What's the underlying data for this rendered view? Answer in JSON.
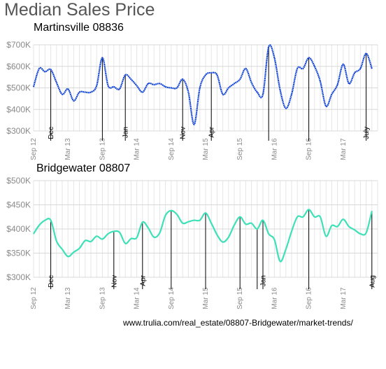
{
  "title": "Median Sales Price",
  "source": "www.trulia.com/real_estate/08807-Bridgewater/market-trends/",
  "chart_data": [
    {
      "type": "line",
      "title": "Martinsville  08836",
      "color": "#1446d6",
      "ylim": [
        300000,
        700000
      ],
      "yticks": [
        {
          "value": 300000,
          "label": "$300K"
        },
        {
          "value": 400000,
          "label": "$400K"
        },
        {
          "value": 500000,
          "label": "$500K"
        },
        {
          "value": 600000,
          "label": "$600K"
        },
        {
          "value": 700000,
          "label": "$700K"
        }
      ],
      "xticks": [
        {
          "value": "2012-09",
          "label": "Sep 12"
        },
        {
          "value": "2013-03",
          "label": "Mar 13"
        },
        {
          "value": "2013-09",
          "label": "Sep 13"
        },
        {
          "value": "2014-03",
          "label": "Mar 14"
        },
        {
          "value": "2014-09",
          "label": "Sep 14"
        },
        {
          "value": "2015-03",
          "label": "Mar 15"
        },
        {
          "value": "2015-09",
          "label": "Sep 15"
        },
        {
          "value": "2016-03",
          "label": "Mar 16"
        },
        {
          "value": "2016-09",
          "label": "Sep 16"
        },
        {
          "value": "2017-03",
          "label": "Mar 17"
        }
      ],
      "x": [
        "2012-09",
        "2012-10",
        "2012-11",
        "2012-12",
        "2013-01",
        "2013-02",
        "2013-03",
        "2013-04",
        "2013-05",
        "2013-06",
        "2013-07",
        "2013-08",
        "2013-09",
        "2013-10",
        "2013-11",
        "2013-12",
        "2014-01",
        "2014-02",
        "2014-03",
        "2014-04",
        "2014-05",
        "2014-06",
        "2014-07",
        "2014-08",
        "2014-09",
        "2014-10",
        "2014-11",
        "2014-12",
        "2015-01",
        "2015-02",
        "2015-03",
        "2015-04",
        "2015-05",
        "2015-06",
        "2015-07",
        "2015-08",
        "2015-09",
        "2015-10",
        "2015-11",
        "2015-12",
        "2016-01",
        "2016-02",
        "2016-03",
        "2016-04",
        "2016-05",
        "2016-06",
        "2016-07",
        "2016-08",
        "2016-09",
        "2016-10",
        "2016-11",
        "2016-12",
        "2017-01",
        "2017-02",
        "2017-03",
        "2017-04",
        "2017-05",
        "2017-06",
        "2017-07",
        "2017-08"
      ],
      "values": [
        505000,
        590000,
        575000,
        585000,
        525000,
        470000,
        495000,
        440000,
        480000,
        480000,
        480000,
        510000,
        640000,
        510000,
        505000,
        495000,
        560000,
        540000,
        510000,
        480000,
        520000,
        515000,
        520000,
        505000,
        500000,
        500000,
        540000,
        480000,
        330000,
        500000,
        560000,
        570000,
        560000,
        470000,
        500000,
        520000,
        540000,
        590000,
        525000,
        480000,
        470000,
        690000,
        640000,
        490000,
        405000,
        470000,
        590000,
        590000,
        640000,
        600000,
        530000,
        415000,
        470000,
        515000,
        610000,
        520000,
        570000,
        590000,
        660000,
        590000
      ],
      "annotations": [
        {
          "x": "2012-12",
          "label": "Dec",
          "value": 585000
        },
        {
          "x": "2013-09",
          "label": "",
          "value": 640000
        },
        {
          "x": "2014-01",
          "label": "Jan",
          "value": 560000
        },
        {
          "x": "2014-11",
          "label": "Nov",
          "value": 540000
        },
        {
          "x": "2015-04",
          "label": "Apr",
          "value": 570000
        },
        {
          "x": "2016-02",
          "label": "",
          "value": 690000
        },
        {
          "x": "2016-09",
          "label": "",
          "value": 640000
        },
        {
          "x": "2017-07",
          "label": "July",
          "value": 660000
        }
      ]
    },
    {
      "type": "line",
      "title": "Bridgewater  08807",
      "color": "#3ee0b8",
      "ylim": [
        300000,
        500000
      ],
      "yticks": [
        {
          "value": 300000,
          "label": "$300K"
        },
        {
          "value": 350000,
          "label": "$350K"
        },
        {
          "value": 400000,
          "label": "$400K"
        },
        {
          "value": 450000,
          "label": "$450K"
        },
        {
          "value": 500000,
          "label": "$500K"
        }
      ],
      "xticks": [
        {
          "value": "2012-09",
          "label": "Sep 12"
        },
        {
          "value": "2013-03",
          "label": "Mar 13"
        },
        {
          "value": "2013-09",
          "label": "Sep 13"
        },
        {
          "value": "2014-03",
          "label": "Mar 14"
        },
        {
          "value": "2014-09",
          "label": "Sep 14"
        },
        {
          "value": "2015-03",
          "label": "Mar 15"
        },
        {
          "value": "2015-09",
          "label": "Sep 15"
        },
        {
          "value": "2016-03",
          "label": "Mar 16"
        },
        {
          "value": "2016-09",
          "label": "Sep 16"
        },
        {
          "value": "2017-03",
          "label": "Mar 17"
        }
      ],
      "x": [
        "2012-09",
        "2012-10",
        "2012-11",
        "2012-12",
        "2013-01",
        "2013-02",
        "2013-03",
        "2013-04",
        "2013-05",
        "2013-06",
        "2013-07",
        "2013-08",
        "2013-09",
        "2013-10",
        "2013-11",
        "2013-12",
        "2014-01",
        "2014-02",
        "2014-03",
        "2014-04",
        "2014-05",
        "2014-06",
        "2014-07",
        "2014-08",
        "2014-09",
        "2014-10",
        "2014-11",
        "2014-12",
        "2015-01",
        "2015-02",
        "2015-03",
        "2015-04",
        "2015-05",
        "2015-06",
        "2015-07",
        "2015-08",
        "2015-09",
        "2015-10",
        "2015-11",
        "2015-12",
        "2016-01",
        "2016-02",
        "2016-03",
        "2016-04",
        "2016-05",
        "2016-06",
        "2016-07",
        "2016-08",
        "2016-09",
        "2016-10",
        "2016-11",
        "2016-12",
        "2017-01",
        "2017-02",
        "2017-03",
        "2017-04",
        "2017-05",
        "2017-06",
        "2017-07",
        "2017-08"
      ],
      "values": [
        390000,
        408000,
        418000,
        418000,
        375000,
        358000,
        343000,
        352000,
        360000,
        376000,
        374000,
        385000,
        379000,
        390000,
        395000,
        393000,
        370000,
        380000,
        382000,
        414000,
        402000,
        383000,
        392000,
        428000,
        438000,
        430000,
        412000,
        415000,
        418000,
        418000,
        433000,
        412000,
        388000,
        373000,
        383000,
        408000,
        425000,
        410000,
        412000,
        400000,
        418000,
        390000,
        378000,
        333000,
        358000,
        395000,
        425000,
        425000,
        440000,
        425000,
        425000,
        385000,
        407000,
        405000,
        420000,
        405000,
        398000,
        390000,
        392000,
        437000
      ],
      "annotations": [
        {
          "x": "2012-12",
          "label": "Dec",
          "value": 418000
        },
        {
          "x": "2013-11",
          "label": "Nov",
          "value": 395000
        },
        {
          "x": "2014-04",
          "label": "Apr",
          "value": 414000
        },
        {
          "x": "2014-09",
          "label": "",
          "value": 438000
        },
        {
          "x": "2015-03",
          "label": "",
          "value": 433000
        },
        {
          "x": "2015-09",
          "label": "",
          "value": 425000
        },
        {
          "x": "2015-12",
          "label": "",
          "value": 400000
        },
        {
          "x": "2016-01",
          "label": "Jan",
          "value": 418000
        },
        {
          "x": "2016-09",
          "label": "",
          "value": 440000
        },
        {
          "x": "2017-08",
          "label": "Aug",
          "value": 437000
        }
      ]
    }
  ]
}
